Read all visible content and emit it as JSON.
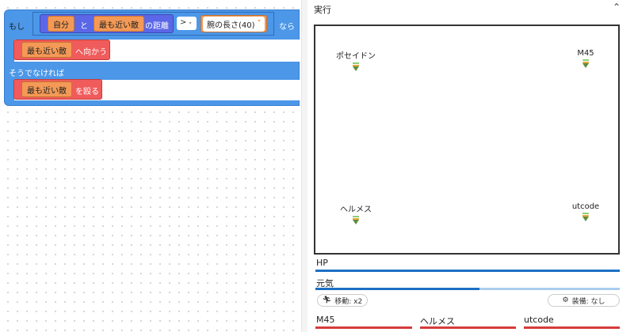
{
  "blocks": {
    "if_label": "もし",
    "self": "自分",
    "and": "と",
    "nearest_enemy": "最も近い敵",
    "distance": "の距離",
    "operator": ">",
    "arm_length": "腕の長さ(40)",
    "then": "なら",
    "move_toward": "へ向かう",
    "else_label": "そうでなければ",
    "hit": "を殴る"
  },
  "panel": {
    "title": "実行",
    "characters": [
      {
        "name": "ポセイドン"
      },
      {
        "name": "M45"
      },
      {
        "name": "ヘルメス"
      },
      {
        "name": "utcode"
      }
    ],
    "hp_label": "HP",
    "hp_percent": 100,
    "energy_label": "元気",
    "energy_percent": 54,
    "move_label": "移動: x2",
    "equip_label": "装備: なし",
    "enemies": [
      {
        "name": "M45",
        "hp_percent": 100
      },
      {
        "name": "ヘルメス",
        "hp_percent": 100
      },
      {
        "name": "utcode",
        "hp_percent": 100
      }
    ],
    "colors": {
      "hp": "#1c6fc4",
      "enemy_hp": "#d63b3b",
      "if_block": "#4c97e8",
      "action_block": "#f05b5b",
      "value_block": "#f49a56"
    }
  }
}
